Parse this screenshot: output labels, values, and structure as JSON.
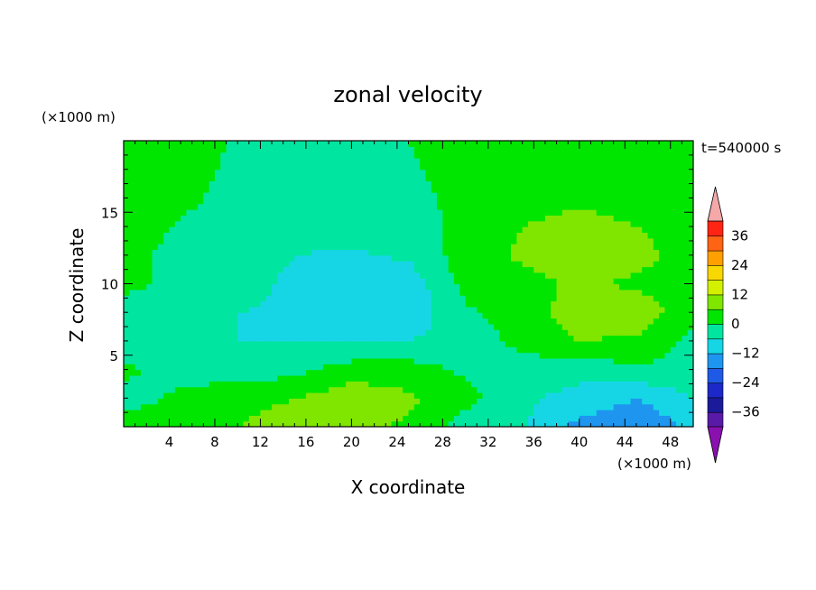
{
  "chart_data": {
    "type": "heatmap",
    "title": "zonal velocity",
    "xlabel": "X coordinate",
    "ylabel": "Z coordinate",
    "x_unit": "(×1000 m)",
    "y_unit": "(×1000 m)",
    "time_label": "t=540000 s",
    "xlim": [
      0,
      50
    ],
    "ylim": [
      0,
      20
    ],
    "x_ticks": [
      4,
      8,
      12,
      16,
      20,
      24,
      28,
      32,
      36,
      40,
      44,
      48
    ],
    "y_ticks": [
      5,
      10,
      15
    ],
    "colorbar": {
      "levels": [
        -42,
        -36,
        -30,
        -24,
        -18,
        -12,
        -6,
        0,
        6,
        12,
        18,
        24,
        30,
        36,
        42
      ],
      "tick_labels": [
        36,
        24,
        12,
        0,
        -12,
        -24,
        -36
      ],
      "colors": [
        "#5a1aa8",
        "#1a1a9a",
        "#1c28c8",
        "#1e5ae6",
        "#1e96f0",
        "#16d6e6",
        "#00e6a0",
        "#00e600",
        "#80e600",
        "#d2f000",
        "#f8d800",
        "#ffa000",
        "#ff6414",
        "#ff2414"
      ],
      "under_color": "#8a10b0",
      "over_color": "#f4a8a8"
    },
    "field": {
      "x": [
        0,
        5,
        10,
        15,
        20,
        25,
        30,
        35,
        40,
        45,
        50
      ],
      "z": [
        0,
        2,
        4,
        6,
        8,
        10,
        12,
        14,
        16,
        18,
        20
      ],
      "u": [
        [
          2,
          4,
          6,
          9,
          8,
          5,
          -3,
          -5,
          -14,
          -18,
          -10
        ],
        [
          -2,
          1,
          4,
          6,
          10,
          7,
          2,
          -5,
          -8,
          -12,
          -6
        ],
        [
          1,
          -2,
          -3,
          -2,
          3,
          3,
          -1,
          -3,
          -4,
          -1,
          -2
        ],
        [
          -3,
          -5,
          -6,
          -6,
          -7,
          -6,
          -4,
          2,
          6,
          5,
          -2
        ],
        [
          -2,
          -3,
          -6,
          -7,
          -8,
          -10,
          -1,
          3,
          9,
          10,
          2
        ],
        [
          1,
          -1,
          -4,
          -7,
          -8,
          -10,
          2,
          4,
          7,
          5,
          2
        ],
        [
          2,
          -2,
          -4,
          -6,
          -7,
          -5,
          3,
          7,
          9,
          8,
          3
        ],
        [
          4,
          -1,
          -3,
          -4,
          -3,
          -3,
          2,
          6,
          8,
          6,
          4
        ],
        [
          4,
          2,
          -3,
          -3,
          -3,
          -2,
          2,
          4,
          5,
          4,
          4
        ],
        [
          4,
          4,
          -2,
          -2,
          -2,
          -1,
          3,
          3,
          3,
          3,
          4
        ],
        [
          4,
          4,
          -1,
          -1,
          -1,
          0,
          3,
          3,
          3,
          3,
          3
        ]
      ]
    }
  }
}
